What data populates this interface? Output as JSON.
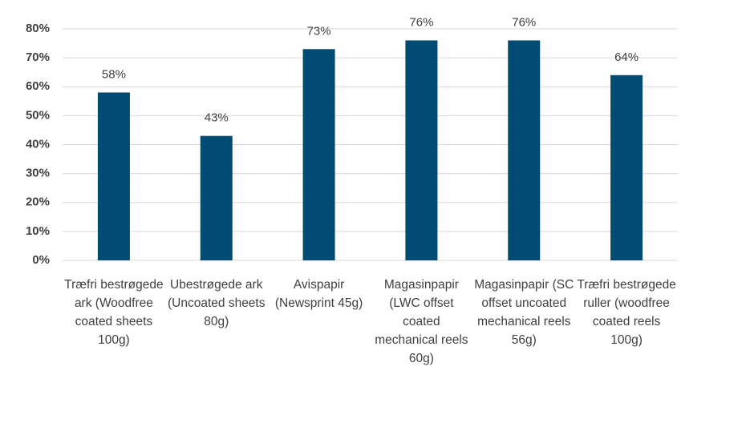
{
  "chart_data": {
    "type": "bar",
    "categories": [
      "Træfri bestrøgede ark (Woodfree coated sheets 100g)",
      "Ubestrøgede ark (Uncoated sheets 80g)",
      "Avispapir (Newsprint 45g)",
      "Magasinpapir (LWC offset coated mechanical reels 60g)",
      "Magasinpapir (SC offset uncoated mechanical reels 56g)",
      "Træfri bestrøgede ruller (woodfree coated reels 100g)"
    ],
    "values": [
      58,
      43,
      73,
      76,
      76,
      64
    ],
    "value_labels": [
      "58%",
      "43%",
      "73%",
      "76%",
      "76%",
      "64%"
    ],
    "color": "#004b73",
    "ylim": [
      0,
      80
    ],
    "yticks": [
      {
        "value": 0,
        "label": "0%"
      },
      {
        "value": 10,
        "label": "10%"
      },
      {
        "value": 20,
        "label": "20%"
      },
      {
        "value": 30,
        "label": "30%"
      },
      {
        "value": 40,
        "label": "40%"
      },
      {
        "value": 50,
        "label": "50%"
      },
      {
        "value": 60,
        "label": "60%"
      },
      {
        "value": 70,
        "label": "70%"
      },
      {
        "value": 80,
        "label": "80%"
      }
    ],
    "grid": true
  }
}
